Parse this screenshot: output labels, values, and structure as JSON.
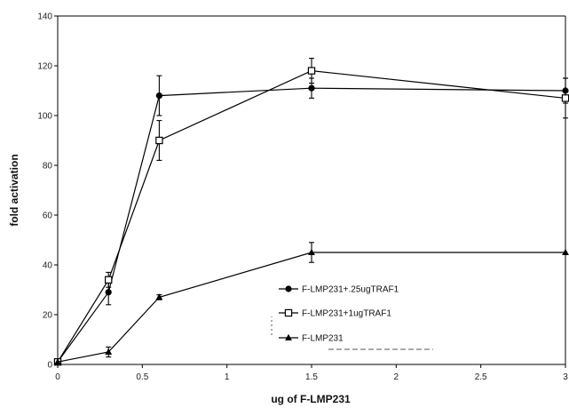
{
  "chart_data": {
    "type": "line",
    "xlabel": "ug of F-LMP231",
    "ylabel": "fold activation",
    "xlim": [
      0,
      3
    ],
    "ylim": [
      0,
      140
    ],
    "xticks": [
      0,
      0.5,
      1,
      1.5,
      2,
      2.5,
      3
    ],
    "xtick_labels": [
      "0",
      "0.5",
      "1",
      "1.5",
      "2",
      "2.5",
      "3"
    ],
    "yticks": [
      0,
      20,
      40,
      60,
      80,
      100,
      120,
      140
    ],
    "ytick_labels": [
      "0",
      "20",
      "40",
      "60",
      "80",
      "100",
      "120",
      "140"
    ],
    "grid": false,
    "legend_position": "lower-right",
    "series": [
      {
        "name": "F-LMP231+.25ugTRAF1",
        "marker": "filled-circle",
        "color": "#000000",
        "x": [
          0,
          0.3,
          0.6,
          1.5,
          3
        ],
        "y": [
          1,
          29,
          108,
          111,
          110
        ],
        "error": [
          0,
          5,
          8,
          4,
          5
        ]
      },
      {
        "name": "F-LMP231+1ugTRAF1",
        "marker": "open-square",
        "color": "#000000",
        "x": [
          0,
          0.3,
          0.6,
          1.5,
          3
        ],
        "y": [
          1,
          34,
          90,
          118,
          107
        ],
        "error": [
          0,
          3,
          8,
          5,
          8
        ]
      },
      {
        "name": "F-LMP231",
        "marker": "filled-triangle",
        "color": "#000000",
        "x": [
          0,
          0.3,
          0.6,
          1.5,
          3
        ],
        "y": [
          1,
          5,
          27,
          45,
          45
        ],
        "error": [
          0,
          2,
          1,
          4,
          0
        ]
      }
    ]
  }
}
